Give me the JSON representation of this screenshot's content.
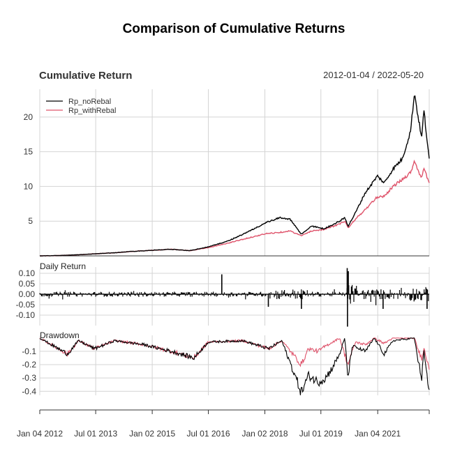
{
  "chart_data": {
    "type": "line",
    "title": "Comparison of Cumulative Returns",
    "subtitle": "Cumulative Return",
    "date_range": "2012-01-04 / 2022-05-20",
    "x_axis": {
      "tick_labels": [
        "Jan 04 2012",
        "Jul 01 2013",
        "Jan 02 2015",
        "Jul 01 2016",
        "Jan 02 2018",
        "Jul 01 2019",
        "Jan 04 2021"
      ],
      "range": [
        "2012-01-04",
        "2022-05-20"
      ]
    },
    "legend": {
      "position": "top-left",
      "entries": [
        "Rp_noRebal",
        "Rp_withRebal"
      ]
    },
    "colors": {
      "Rp_noRebal": "#000000",
      "Rp_withRebal": "#DF536B"
    },
    "panels": [
      {
        "name": "Cumulative Return",
        "label": "",
        "y_ticks": [
          "5",
          "10",
          "15",
          "20"
        ],
        "ylim": [
          0,
          24
        ],
        "series": [
          {
            "name": "Rp_noRebal",
            "points": [
              [
                "2012-01-04",
                0.0
              ],
              [
                "2012-07-01",
                0.05
              ],
              [
                "2013-01-01",
                0.15
              ],
              [
                "2013-07-01",
                0.3
              ],
              [
                "2014-01-01",
                0.45
              ],
              [
                "2014-07-01",
                0.65
              ],
              [
                "2015-01-01",
                0.8
              ],
              [
                "2015-07-01",
                0.95
              ],
              [
                "2016-01-01",
                0.75
              ],
              [
                "2016-07-01",
                1.3
              ],
              [
                "2017-01-01",
                2.1
              ],
              [
                "2017-07-01",
                3.3
              ],
              [
                "2018-01-15",
                4.8
              ],
              [
                "2018-06-01",
                5.5
              ],
              [
                "2018-09-01",
                5.3
              ],
              [
                "2018-12-24",
                3.1
              ],
              [
                "2019-04-01",
                4.3
              ],
              [
                "2019-08-01",
                3.9
              ],
              [
                "2020-01-01",
                5.0
              ],
              [
                "2020-02-19",
                5.5
              ],
              [
                "2020-03-23",
                4.3
              ],
              [
                "2020-06-01",
                6.2
              ],
              [
                "2020-09-01",
                9.0
              ],
              [
                "2021-01-01",
                11.5
              ],
              [
                "2021-03-08",
                10.5
              ],
              [
                "2021-06-01",
                12.5
              ],
              [
                "2021-09-01",
                14.0
              ],
              [
                "2021-11-20",
                18.0
              ],
              [
                "2021-12-27",
                23.5
              ],
              [
                "2022-01-27",
                20.5
              ],
              [
                "2022-03-08",
                17.0
              ],
              [
                "2022-03-29",
                21.0
              ],
              [
                "2022-05-20",
                13.8
              ]
            ]
          },
          {
            "name": "Rp_withRebal",
            "points": [
              [
                "2012-01-04",
                0.0
              ],
              [
                "2012-07-01",
                0.05
              ],
              [
                "2013-01-01",
                0.15
              ],
              [
                "2013-07-01",
                0.3
              ],
              [
                "2014-01-01",
                0.45
              ],
              [
                "2014-07-01",
                0.65
              ],
              [
                "2015-01-01",
                0.8
              ],
              [
                "2015-07-01",
                0.95
              ],
              [
                "2016-01-01",
                0.75
              ],
              [
                "2016-07-01",
                1.2
              ],
              [
                "2017-01-01",
                1.8
              ],
              [
                "2017-07-01",
                2.5
              ],
              [
                "2018-01-15",
                3.2
              ],
              [
                "2018-06-01",
                3.4
              ],
              [
                "2018-09-01",
                3.6
              ],
              [
                "2018-12-24",
                2.9
              ],
              [
                "2019-04-01",
                3.6
              ],
              [
                "2019-08-01",
                3.8
              ],
              [
                "2020-01-01",
                4.6
              ],
              [
                "2020-02-19",
                5.0
              ],
              [
                "2020-03-23",
                4.0
              ],
              [
                "2020-06-01",
                5.3
              ],
              [
                "2020-09-01",
                6.6
              ],
              [
                "2021-01-01",
                8.5
              ],
              [
                "2021-03-08",
                8.6
              ],
              [
                "2021-06-01",
                10.0
              ],
              [
                "2021-09-01",
                11.0
              ],
              [
                "2021-11-20",
                12.0
              ],
              [
                "2021-12-27",
                13.7
              ],
              [
                "2022-01-27",
                12.5
              ],
              [
                "2022-03-08",
                11.2
              ],
              [
                "2022-03-29",
                12.5
              ],
              [
                "2022-05-20",
                10.6
              ]
            ]
          }
        ]
      },
      {
        "name": "Daily Return",
        "label": "Daily Return",
        "y_ticks": [
          "0.10",
          "0.05",
          "0.00",
          "-0.05",
          "-0.10"
        ],
        "ylim": [
          -0.15,
          0.13
        ],
        "notable_values": [
          [
            "2016-11-09",
            0.095
          ],
          [
            "2020-03-13",
            0.125
          ],
          [
            "2020-03-16",
            -0.155
          ],
          [
            "2020-03-24",
            0.11
          ],
          [
            "2018-02-05",
            -0.06
          ],
          [
            "2018-12-24",
            -0.07
          ],
          [
            "2021-02-25",
            -0.07
          ],
          [
            "2022-04-29",
            -0.07
          ]
        ]
      },
      {
        "name": "Drawdown",
        "label": "Drawdown",
        "y_ticks": [
          "-0.1",
          "-0.2",
          "-0.3",
          "-0.4"
        ],
        "ylim": [
          -0.43,
          0.02
        ],
        "series": [
          {
            "name": "Rp_noRebal",
            "points": [
              [
                "2012-01-04",
                0.0
              ],
              [
                "2012-10-01",
                -0.12
              ],
              [
                "2013-01-15",
                -0.02
              ],
              [
                "2013-06-20",
                -0.08
              ],
              [
                "2014-01-01",
                -0.02
              ],
              [
                "2014-10-15",
                -0.05
              ],
              [
                "2015-08-25",
                -0.11
              ],
              [
                "2016-02-11",
                -0.15
              ],
              [
                "2016-07-01",
                -0.03
              ],
              [
                "2017-06-01",
                -0.02
              ],
              [
                "2018-02-08",
                -0.08
              ],
              [
                "2018-06-15",
                -0.02
              ],
              [
                "2018-12-24",
                -0.41
              ],
              [
                "2019-03-01",
                -0.28
              ],
              [
                "2019-06-03",
                -0.33
              ],
              [
                "2019-08-15",
                -0.3
              ],
              [
                "2019-10-15",
                -0.23
              ],
              [
                "2019-12-31",
                -0.12
              ],
              [
                "2020-02-19",
                0.0
              ],
              [
                "2020-03-20",
                -0.3
              ],
              [
                "2020-05-01",
                -0.06
              ],
              [
                "2020-09-08",
                -0.1
              ],
              [
                "2020-12-01",
                0.0
              ],
              [
                "2021-03-08",
                -0.12
              ],
              [
                "2021-06-01",
                -0.02
              ],
              [
                "2021-12-27",
                0.0
              ],
              [
                "2022-01-27",
                -0.15
              ],
              [
                "2022-03-08",
                -0.3
              ],
              [
                "2022-03-29",
                -0.1
              ],
              [
                "2022-05-20",
                -0.41
              ]
            ]
          },
          {
            "name": "Rp_withRebal",
            "points": [
              [
                "2012-01-04",
                0.0
              ],
              [
                "2012-10-01",
                -0.12
              ],
              [
                "2013-01-15",
                -0.02
              ],
              [
                "2013-06-20",
                -0.08
              ],
              [
                "2014-01-01",
                -0.02
              ],
              [
                "2014-10-15",
                -0.05
              ],
              [
                "2015-08-25",
                -0.11
              ],
              [
                "2016-02-11",
                -0.15
              ],
              [
                "2016-07-01",
                -0.03
              ],
              [
                "2017-06-01",
                -0.02
              ],
              [
                "2018-02-08",
                -0.08
              ],
              [
                "2018-06-15",
                -0.02
              ],
              [
                "2018-12-24",
                -0.2
              ],
              [
                "2019-03-01",
                -0.08
              ],
              [
                "2019-06-03",
                -0.1
              ],
              [
                "2019-08-15",
                -0.06
              ],
              [
                "2019-12-31",
                0.0
              ],
              [
                "2020-03-20",
                -0.2
              ],
              [
                "2020-06-01",
                -0.03
              ],
              [
                "2020-09-08",
                -0.05
              ],
              [
                "2020-12-01",
                0.0
              ],
              [
                "2021-03-08",
                -0.04
              ],
              [
                "2021-06-01",
                0.0
              ],
              [
                "2021-12-27",
                0.0
              ],
              [
                "2022-01-27",
                -0.08
              ],
              [
                "2022-03-08",
                -0.15
              ],
              [
                "2022-03-29",
                -0.08
              ],
              [
                "2022-05-20",
                -0.22
              ]
            ]
          }
        ]
      }
    ]
  }
}
